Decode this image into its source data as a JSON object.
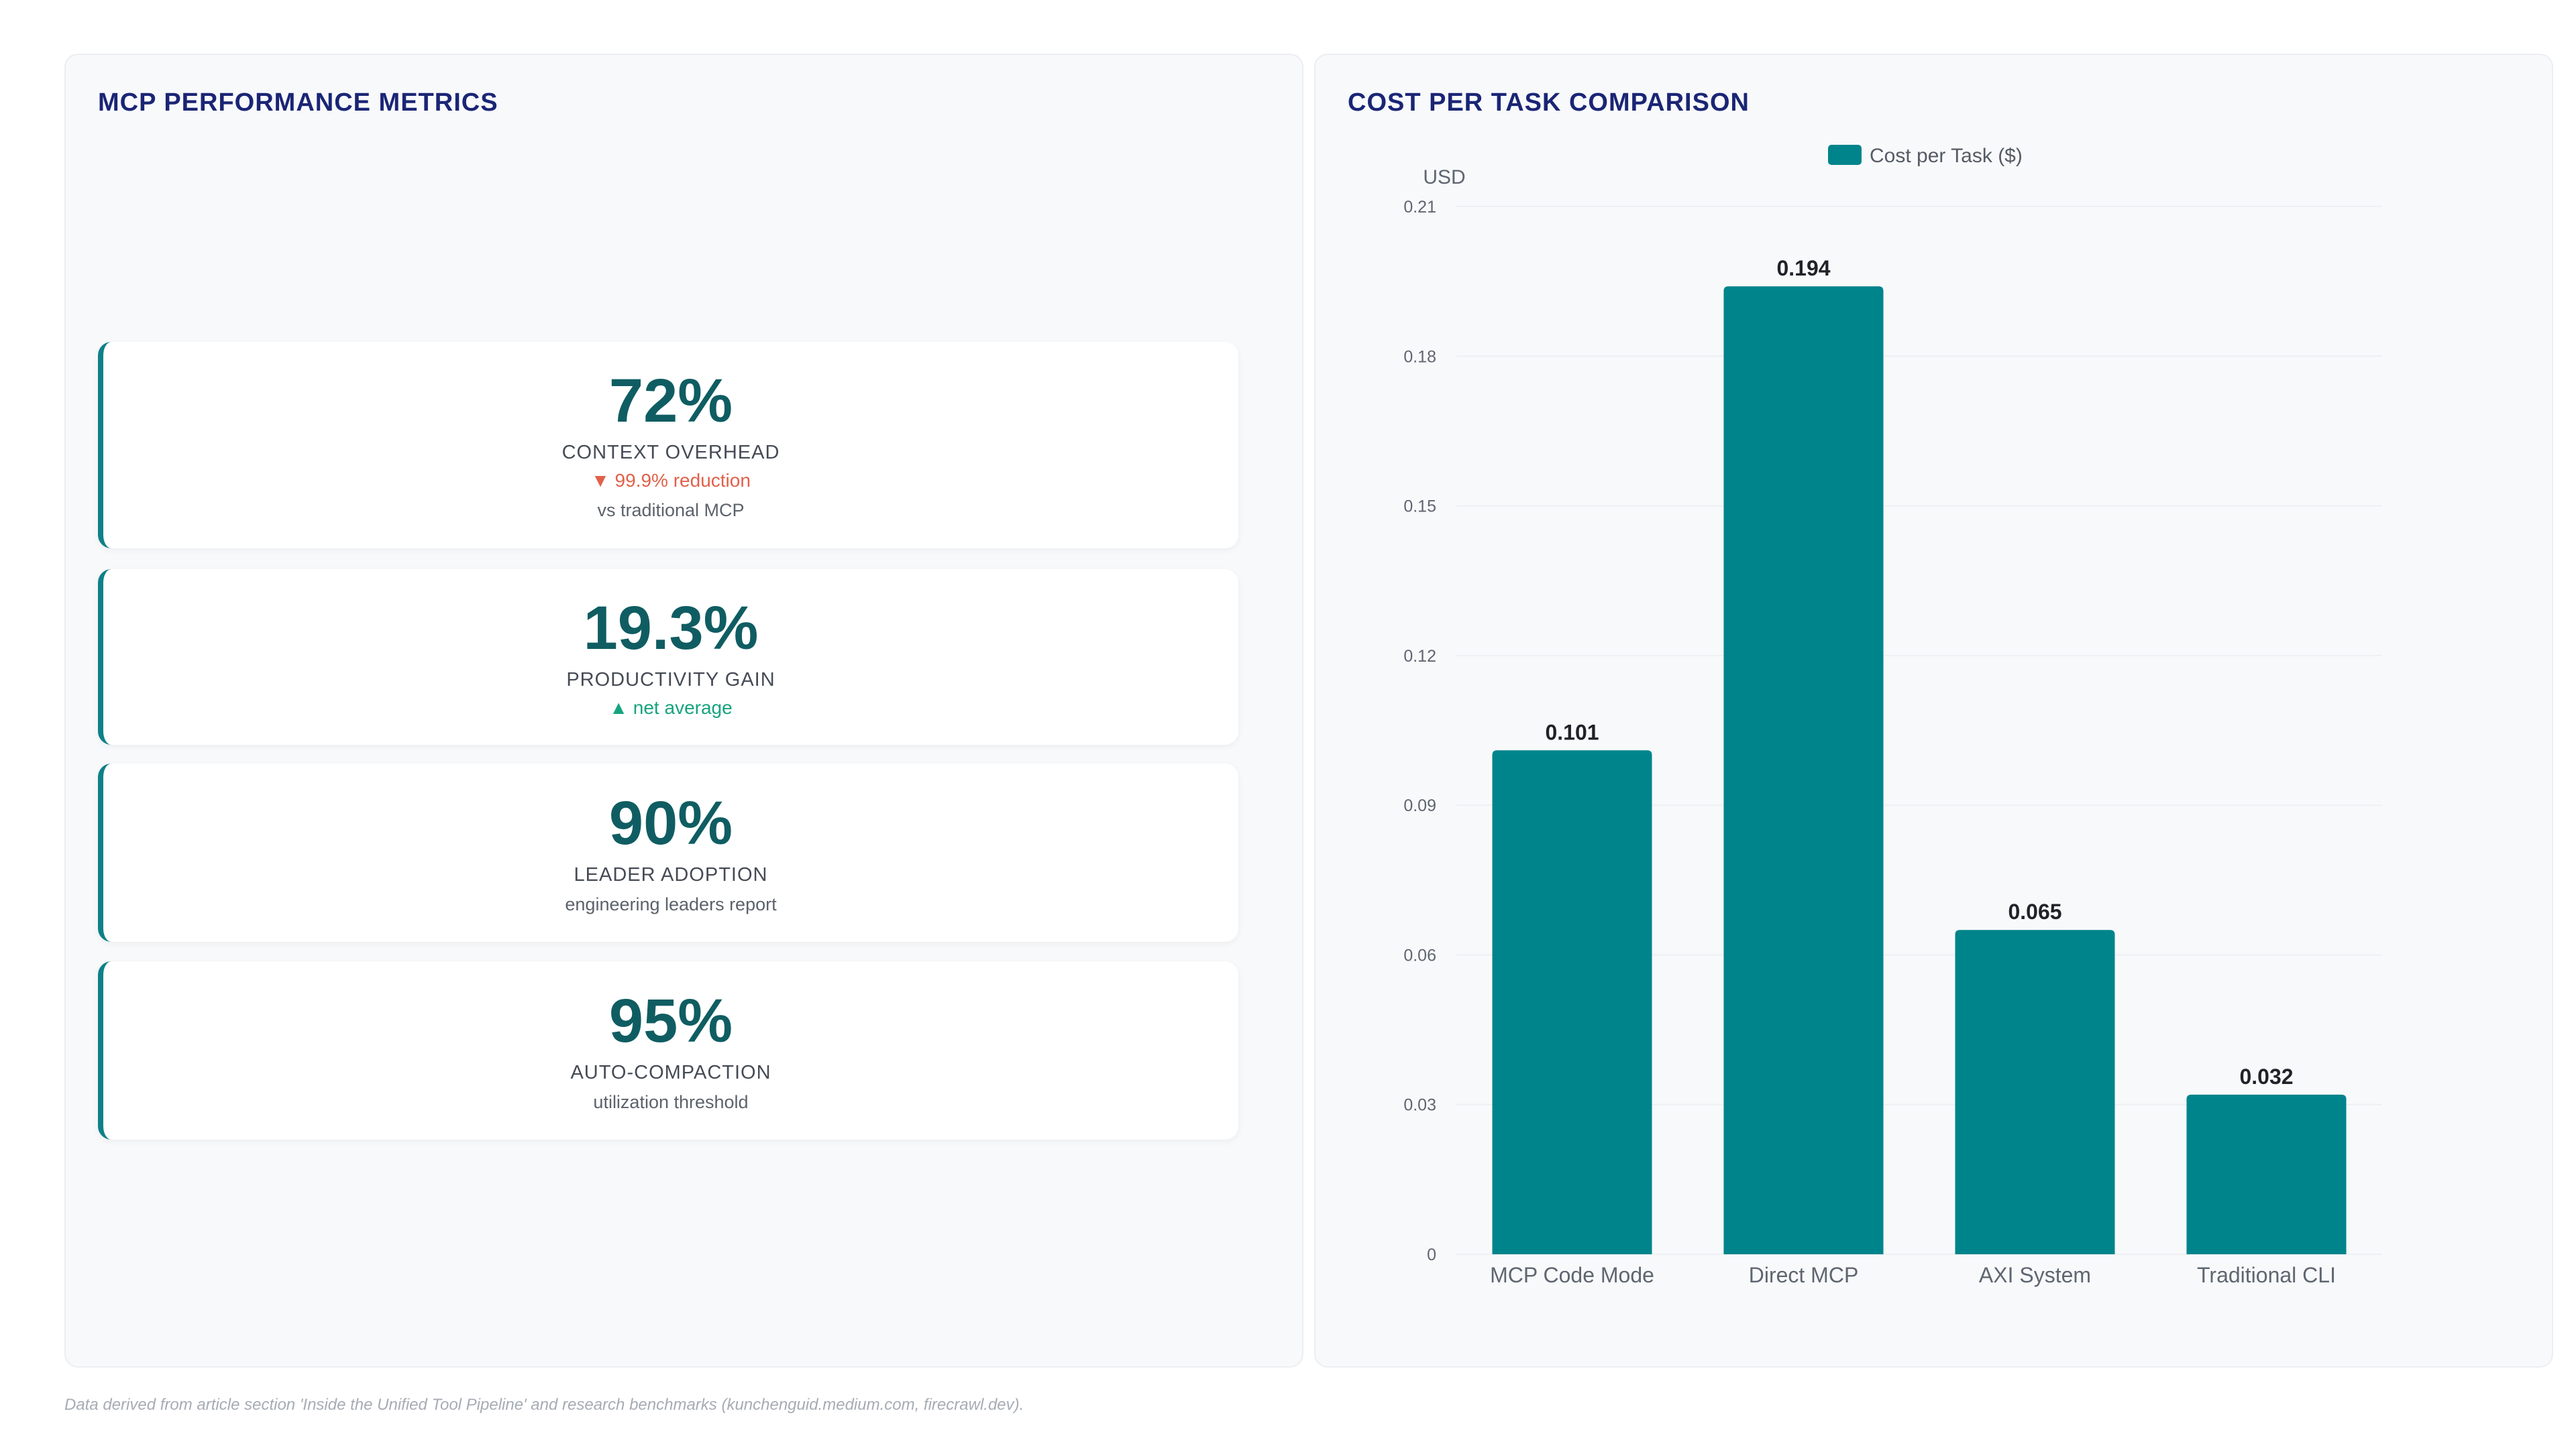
{
  "left_panel": {
    "title": "MCP PERFORMANCE METRICS",
    "cards": [
      {
        "value": "72%",
        "label": "CONTEXT OVERHEAD",
        "change": "▼ 99.9% reduction",
        "note": "vs traditional MCP"
      },
      {
        "value": "19.3%",
        "label": "PRODUCTIVITY GAIN",
        "change": "▲ net average"
      },
      {
        "value": "90%",
        "label": "LEADER ADOPTION",
        "note": "engineering leaders report"
      },
      {
        "value": "95%",
        "label": "AUTO-COMPACTION",
        "note": "utilization threshold"
      }
    ]
  },
  "right_panel": {
    "title": "COST PER TASK COMPARISON"
  },
  "chart_data": {
    "type": "bar",
    "title": "COST PER TASK COMPARISON",
    "categories": [
      "MCP Code Mode",
      "Direct MCP",
      "AXI System",
      "Traditional CLI"
    ],
    "series": [
      {
        "name": "Cost per Task ($)",
        "values": [
          0.101,
          0.194,
          0.065,
          0.032
        ]
      }
    ],
    "data_labels": [
      "0.101",
      "0.194",
      "0.065",
      "0.032"
    ],
    "ylabel": "USD",
    "ylim": [
      0,
      0.21
    ],
    "yticks": [
      0,
      0.03,
      0.06,
      0.09,
      0.12,
      0.15,
      0.18,
      0.21
    ],
    "ytick_labels": [
      "0",
      "0.03",
      "0.06",
      "0.09",
      "0.12",
      "0.15",
      "0.18",
      "0.21"
    ],
    "grid": true,
    "legend": "top-center",
    "colors": {
      "bar": "#00848c",
      "grid": "#eef0f3",
      "axis_text": "#5e6670"
    }
  },
  "footer": "Data derived from article section 'Inside the Unified Tool Pipeline' and research benchmarks (kunchenguid.medium.com, firecrawl.dev)."
}
